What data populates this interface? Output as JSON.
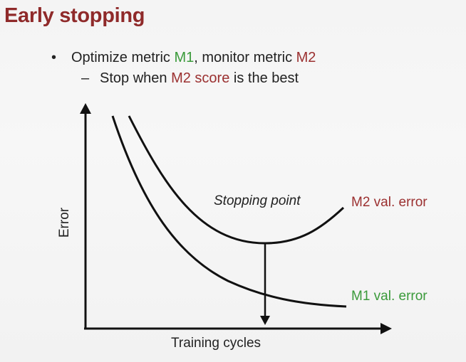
{
  "slide": {
    "title": "Early stopping"
  },
  "bullets": {
    "b1_bullet": "•",
    "b1_text_a": "Optimize metric ",
    "b1_m1": "M1",
    "b1_text_b": ", monitor metric ",
    "b1_m2": "M2",
    "b2_dash": "–",
    "b2_text_a": "Stop when ",
    "b2_m2score": "M2 score",
    "b2_text_b": " is the best"
  },
  "diagram": {
    "stopping_point_label": "Stopping point",
    "m2_curve_label": "M2 val. error",
    "m1_curve_label": "M1 val. error",
    "x_axis_label": "Training cycles",
    "y_axis_label": "Error",
    "colors": {
      "title": "#8f2a2a",
      "m1": "#3a9a3a",
      "m2": "#9b3030",
      "ink": "#111111"
    }
  }
}
